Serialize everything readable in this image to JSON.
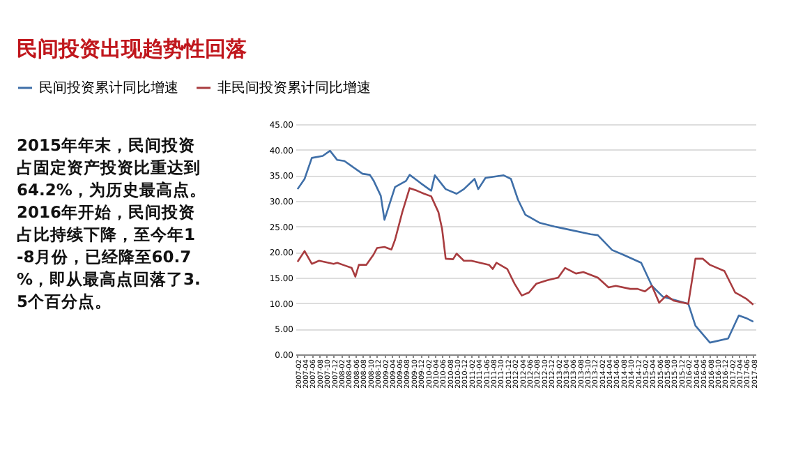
{
  "chart_data": {
    "type": "line",
    "title": "民间投资出现趋势性回落",
    "annotations": [
      "2015年年末，民间投资占固定资产投资比重达到64.2%，为历史最高点。2016年开始，民间投资占比持续下降，至今年1-8月份，已经降至60.7%，即从最高点回落了3.5个百分点。"
    ],
    "series": [
      {
        "name": "民间投资累计同比增速",
        "color": "#3f6fa8",
        "x": [
          "2007-02",
          "2007-04",
          "2007-06",
          "2007-09",
          "2007-11",
          "2008-01",
          "2008-03",
          "2008-05",
          "2008-08",
          "2008-10",
          "2008-11",
          "2009-01",
          "2009-02",
          "2009-05",
          "2009-08",
          "2009-09",
          "2009-12",
          "2010-03",
          "2010-04",
          "2010-07",
          "2010-10",
          "2010-12",
          "2011-03",
          "2011-04",
          "2011-06",
          "2011-11",
          "2012-01",
          "2012-03",
          "2012-05",
          "2012-09",
          "2013-01",
          "2013-03",
          "2013-11",
          "2014-01",
          "2014-05",
          "2014-08",
          "2015-01",
          "2015-04",
          "2015-07",
          "2016-02",
          "2016-04",
          "2016-08",
          "2017-01",
          "2017-04",
          "2017-06",
          "2017-08"
        ],
        "values": [
          32.3,
          34.3,
          38.4,
          38.8,
          39.8,
          38.0,
          37.8,
          36.8,
          35.3,
          35.1,
          34.0,
          31.0,
          26.3,
          32.7,
          33.9,
          35.1,
          33.5,
          32.0,
          35.0,
          32.3,
          31.4,
          32.3,
          34.3,
          32.3,
          34.5,
          35.0,
          34.3,
          30.2,
          27.3,
          25.7,
          25.0,
          24.7,
          23.5,
          23.3,
          20.4,
          19.5,
          17.9,
          13.4,
          11.3,
          9.9,
          5.6,
          2.3,
          3.1,
          7.6,
          7.1,
          6.4
        ]
      },
      {
        "name": "非民间投资累计同比增速",
        "color": "#a83c3f",
        "x": [
          "2007-02",
          "2007-04",
          "2007-06",
          "2007-08",
          "2007-12",
          "2008-01",
          "2008-03",
          "2008-05",
          "2008-06",
          "2008-07",
          "2008-09",
          "2008-11",
          "2008-12",
          "2009-02",
          "2009-04",
          "2009-05",
          "2009-07",
          "2009-09",
          "2009-11",
          "2010-01",
          "2010-03",
          "2010-05",
          "2010-06",
          "2010-07",
          "2010-09",
          "2010-10",
          "2010-12",
          "2011-02",
          "2011-07",
          "2011-08",
          "2011-09",
          "2011-12",
          "2012-02",
          "2012-04",
          "2012-06",
          "2012-08",
          "2012-11",
          "2013-02",
          "2013-04",
          "2013-07",
          "2013-09",
          "2014-01",
          "2014-04",
          "2014-06",
          "2014-10",
          "2014-12",
          "2015-02",
          "2015-04",
          "2015-06",
          "2015-08",
          "2015-10",
          "2016-02",
          "2016-04",
          "2016-06",
          "2016-08",
          "2016-12",
          "2017-03",
          "2017-04",
          "2017-06",
          "2017-08"
        ],
        "values": [
          18.1,
          20.2,
          17.7,
          18.3,
          17.7,
          17.9,
          17.4,
          16.9,
          15.2,
          17.5,
          17.5,
          19.5,
          20.8,
          21.0,
          20.5,
          22.4,
          27.8,
          32.5,
          32.0,
          31.4,
          30.9,
          27.8,
          24.5,
          18.7,
          18.6,
          19.7,
          18.3,
          18.3,
          17.5,
          16.7,
          17.9,
          16.7,
          13.8,
          11.5,
          12.1,
          13.8,
          14.5,
          15.0,
          16.9,
          15.8,
          16.1,
          15.0,
          13.1,
          13.4,
          12.8,
          12.8,
          12.3,
          13.4,
          10.1,
          11.5,
          10.5,
          9.9,
          18.7,
          18.7,
          17.5,
          16.3,
          12.1,
          11.7,
          10.9,
          9.7
        ]
      }
    ],
    "xlim": [
      "2007-01-15",
      "2017-08-20"
    ],
    "xticks": [
      "2007-02",
      "2007-04",
      "2007-06",
      "2007-08",
      "2007-10",
      "2007-12",
      "2008-02",
      "2008-04",
      "2008-06",
      "2008-08",
      "2008-10",
      "2008-12",
      "2009-02",
      "2009-04",
      "2009-06",
      "2009-08",
      "2009-10",
      "2009-12",
      "2010-02",
      "2010-04",
      "2010-06",
      "2010-08",
      "2010-10",
      "2010-12",
      "2011-02",
      "2011-04",
      "2011-06",
      "2011-08",
      "2011-10",
      "2011-12",
      "2012-02",
      "2012-04",
      "2012-06",
      "2012-08",
      "2012-10",
      "2012-12",
      "2013-02",
      "2013-04",
      "2013-06",
      "2013-08",
      "2013-10",
      "2013-12",
      "2014-02",
      "2014-04",
      "2014-06",
      "2014-08",
      "2014-10",
      "2014-12",
      "2015-02",
      "2015-04",
      "2015-06",
      "2015-08",
      "2015-10",
      "2015-12",
      "2016-02",
      "2016-04",
      "2016-06",
      "2016-08",
      "2016-10",
      "2016-12",
      "2017-02",
      "2017-04",
      "2017-06",
      "2017-08"
    ],
    "ylim": [
      0,
      45
    ],
    "yticks": [
      {
        "value": 0,
        "label": "0.00"
      },
      {
        "value": 5,
        "label": "5.00"
      },
      {
        "value": 10,
        "label": "10.00"
      },
      {
        "value": 15,
        "label": "15.00"
      },
      {
        "value": 20,
        "label": "20.00"
      },
      {
        "value": 25,
        "label": "25.00"
      },
      {
        "value": 30,
        "label": "30.00"
      },
      {
        "value": 35,
        "label": "35.00"
      },
      {
        "value": 40,
        "label": "40.00"
      },
      {
        "value": 45,
        "label": "45.00"
      }
    ],
    "grid": "y",
    "legend": "top",
    "marker": "none",
    "line_style": "solid"
  }
}
